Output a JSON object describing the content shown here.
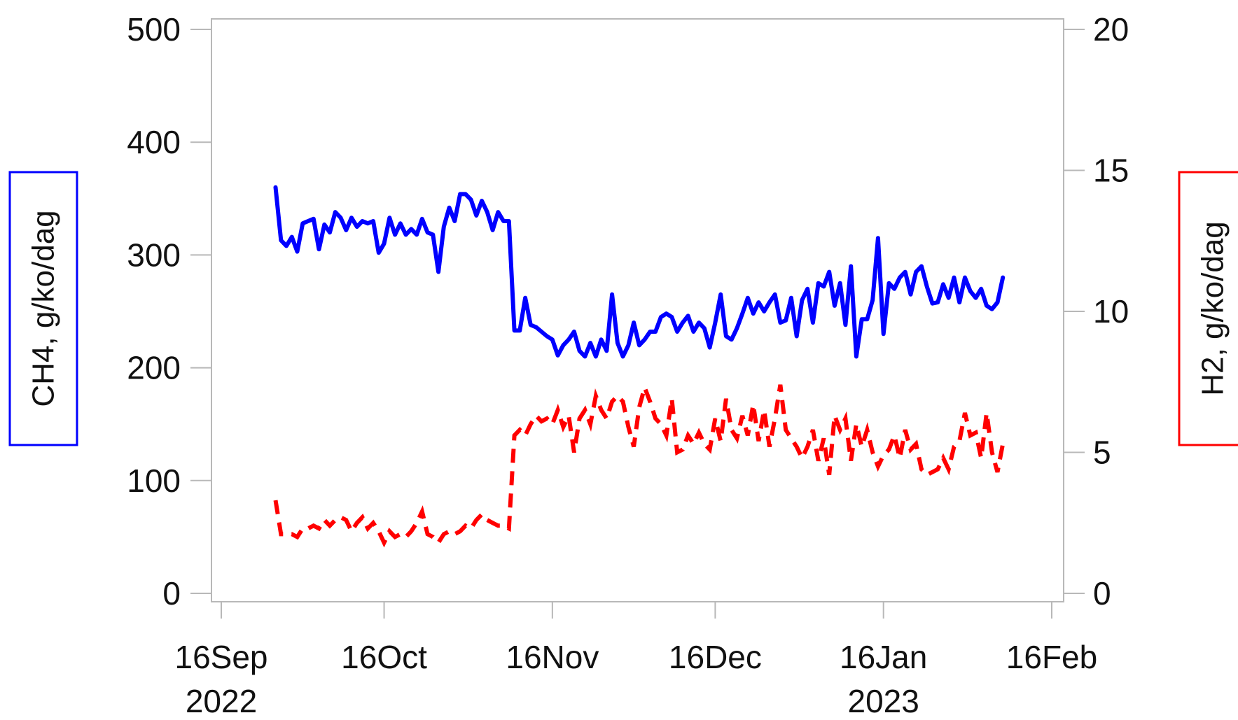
{
  "chart_data": {
    "type": "line",
    "title": "",
    "x_axis": {
      "type": "date",
      "ticks": [
        {
          "date": "2022-09-16",
          "line1": "16Sep",
          "line2": "2022"
        },
        {
          "date": "2022-10-16",
          "line1": "16Oct",
          "line2": ""
        },
        {
          "date": "2022-11-16",
          "line1": "16Nov",
          "line2": ""
        },
        {
          "date": "2022-12-16",
          "line1": "16Dec",
          "line2": ""
        },
        {
          "date": "2023-01-16",
          "line1": "16Jan",
          "line2": "2023"
        },
        {
          "date": "2023-02-16",
          "line1": "16Feb",
          "line2": ""
        }
      ]
    },
    "y_left": {
      "label": "CH4, g/ko/dag",
      "range": [
        0,
        500
      ],
      "ticks": [
        "0",
        "100",
        "200",
        "300",
        "400",
        "500"
      ],
      "color": "#0000ff"
    },
    "y_right": {
      "label": "H2, g/ko/dag",
      "range": [
        0,
        20
      ],
      "ticks": [
        "0",
        "5",
        "10",
        "15",
        "20"
      ],
      "color": "#ff0000"
    },
    "grid": false,
    "series": [
      {
        "axis": "left",
        "color": "#0000ff",
        "style": "solid",
        "points": [
          [
            "2022-09-26",
            360
          ],
          [
            "2022-09-27",
            313
          ],
          [
            "2022-09-28",
            308
          ],
          [
            "2022-09-29",
            316
          ],
          [
            "2022-09-30",
            303
          ],
          [
            "2022-10-01",
            328
          ],
          [
            "2022-10-02",
            330
          ],
          [
            "2022-10-03",
            332
          ],
          [
            "2022-10-04",
            305
          ],
          [
            "2022-10-05",
            327
          ],
          [
            "2022-10-06",
            320
          ],
          [
            "2022-10-07",
            338
          ],
          [
            "2022-10-08",
            333
          ],
          [
            "2022-10-09",
            322
          ],
          [
            "2022-10-10",
            333
          ],
          [
            "2022-10-11",
            325
          ],
          [
            "2022-10-12",
            330
          ],
          [
            "2022-10-13",
            328
          ],
          [
            "2022-10-14",
            330
          ],
          [
            "2022-10-15",
            302
          ],
          [
            "2022-10-16",
            310
          ],
          [
            "2022-10-17",
            333
          ],
          [
            "2022-10-18",
            318
          ],
          [
            "2022-10-19",
            328
          ],
          [
            "2022-10-20",
            318
          ],
          [
            "2022-10-21",
            323
          ],
          [
            "2022-10-22",
            318
          ],
          [
            "2022-10-23",
            332
          ],
          [
            "2022-10-24",
            320
          ],
          [
            "2022-10-25",
            318
          ],
          [
            "2022-10-26",
            285
          ],
          [
            "2022-10-27",
            325
          ],
          [
            "2022-10-28",
            342
          ],
          [
            "2022-10-29",
            330
          ],
          [
            "2022-10-30",
            354
          ],
          [
            "2022-10-31",
            354
          ],
          [
            "2022-11-01",
            349
          ],
          [
            "2022-11-02",
            335
          ],
          [
            "2022-11-03",
            348
          ],
          [
            "2022-11-04",
            338
          ],
          [
            "2022-11-05",
            322
          ],
          [
            "2022-11-06",
            338
          ],
          [
            "2022-11-07",
            330
          ],
          [
            "2022-11-08",
            330
          ],
          [
            "2022-11-09",
            233
          ],
          [
            "2022-11-10",
            233
          ],
          [
            "2022-11-11",
            262
          ],
          [
            "2022-11-12",
            238
          ],
          [
            "2022-11-13",
            236
          ],
          [
            "2022-11-14",
            232
          ],
          [
            "2022-11-15",
            228
          ],
          [
            "2022-11-16",
            225
          ],
          [
            "2022-11-17",
            211
          ],
          [
            "2022-11-18",
            220
          ],
          [
            "2022-11-19",
            225
          ],
          [
            "2022-11-20",
            232
          ],
          [
            "2022-11-21",
            215
          ],
          [
            "2022-11-22",
            210
          ],
          [
            "2022-11-23",
            222
          ],
          [
            "2022-11-24",
            210
          ],
          [
            "2022-11-25",
            225
          ],
          [
            "2022-11-26",
            215
          ],
          [
            "2022-11-27",
            265
          ],
          [
            "2022-11-28",
            222
          ],
          [
            "2022-11-29",
            210
          ],
          [
            "2022-11-30",
            220
          ],
          [
            "2022-12-01",
            240
          ],
          [
            "2022-12-02",
            220
          ],
          [
            "2022-12-03",
            225
          ],
          [
            "2022-12-04",
            232
          ],
          [
            "2022-12-05",
            232
          ],
          [
            "2022-12-06",
            245
          ],
          [
            "2022-12-07",
            248
          ],
          [
            "2022-12-08",
            245
          ],
          [
            "2022-12-09",
            232
          ],
          [
            "2022-12-10",
            240
          ],
          [
            "2022-12-11",
            246
          ],
          [
            "2022-12-12",
            232
          ],
          [
            "2022-12-13",
            240
          ],
          [
            "2022-12-14",
            235
          ],
          [
            "2022-12-15",
            218
          ],
          [
            "2022-12-16",
            240
          ],
          [
            "2022-12-17",
            265
          ],
          [
            "2022-12-18",
            228
          ],
          [
            "2022-12-19",
            225
          ],
          [
            "2022-12-20",
            235
          ],
          [
            "2022-12-21",
            248
          ],
          [
            "2022-12-22",
            262
          ],
          [
            "2022-12-23",
            248
          ],
          [
            "2022-12-24",
            258
          ],
          [
            "2022-12-25",
            250
          ],
          [
            "2022-12-26",
            258
          ],
          [
            "2022-12-27",
            265
          ],
          [
            "2022-12-28",
            240
          ],
          [
            "2022-12-29",
            242
          ],
          [
            "2022-12-30",
            262
          ],
          [
            "2022-12-31",
            228
          ],
          [
            "2023-01-01",
            260
          ],
          [
            "2023-01-02",
            270
          ],
          [
            "2023-01-03",
            240
          ],
          [
            "2023-01-04",
            275
          ],
          [
            "2023-01-05",
            272
          ],
          [
            "2023-01-06",
            285
          ],
          [
            "2023-01-07",
            255
          ],
          [
            "2023-01-08",
            275
          ],
          [
            "2023-01-09",
            238
          ],
          [
            "2023-01-10",
            290
          ],
          [
            "2023-01-11",
            210
          ],
          [
            "2023-01-12",
            243
          ],
          [
            "2023-01-13",
            243
          ],
          [
            "2023-01-14",
            260
          ],
          [
            "2023-01-15",
            315
          ],
          [
            "2023-01-16",
            230
          ],
          [
            "2023-01-17",
            275
          ],
          [
            "2023-01-18",
            270
          ],
          [
            "2023-01-19",
            280
          ],
          [
            "2023-01-20",
            285
          ],
          [
            "2023-01-21",
            265
          ],
          [
            "2023-01-22",
            285
          ],
          [
            "2023-01-23",
            290
          ],
          [
            "2023-01-24",
            272
          ],
          [
            "2023-01-25",
            257
          ],
          [
            "2023-01-26",
            258
          ],
          [
            "2023-01-27",
            274
          ],
          [
            "2023-01-28",
            262
          ],
          [
            "2023-01-29",
            280
          ],
          [
            "2023-01-30",
            258
          ],
          [
            "2023-01-31",
            280
          ],
          [
            "2023-02-01",
            268
          ],
          [
            "2023-02-02",
            262
          ],
          [
            "2023-02-03",
            270
          ],
          [
            "2023-02-04",
            255
          ],
          [
            "2023-02-05",
            252
          ],
          [
            "2023-02-06",
            258
          ],
          [
            "2023-02-07",
            280
          ]
        ]
      },
      {
        "axis": "right",
        "color": "#ff0000",
        "style": "dashed",
        "points": [
          [
            "2022-09-26",
            3.3
          ],
          [
            "2022-09-27",
            2.1
          ],
          [
            "2022-09-28",
            2.1
          ],
          [
            "2022-09-29",
            2.1
          ],
          [
            "2022-09-30",
            2.0
          ],
          [
            "2022-10-01",
            2.3
          ],
          [
            "2022-10-02",
            2.3
          ],
          [
            "2022-10-03",
            2.4
          ],
          [
            "2022-10-04",
            2.3
          ],
          [
            "2022-10-05",
            2.6
          ],
          [
            "2022-10-06",
            2.4
          ],
          [
            "2022-10-07",
            2.6
          ],
          [
            "2022-10-08",
            2.7
          ],
          [
            "2022-10-09",
            2.6
          ],
          [
            "2022-10-10",
            2.2
          ],
          [
            "2022-10-11",
            2.5
          ],
          [
            "2022-10-12",
            2.7
          ],
          [
            "2022-10-13",
            2.3
          ],
          [
            "2022-10-14",
            2.5
          ],
          [
            "2022-10-15",
            2.2
          ],
          [
            "2022-10-16",
            1.8
          ],
          [
            "2022-10-17",
            2.2
          ],
          [
            "2022-10-18",
            2.0
          ],
          [
            "2022-10-19",
            2.1
          ],
          [
            "2022-10-20",
            2.0
          ],
          [
            "2022-10-21",
            2.2
          ],
          [
            "2022-10-22",
            2.5
          ],
          [
            "2022-10-23",
            2.9
          ],
          [
            "2022-10-24",
            2.1
          ],
          [
            "2022-10-25",
            2.0
          ],
          [
            "2022-10-26",
            1.8
          ],
          [
            "2022-10-27",
            2.1
          ],
          [
            "2022-10-28",
            2.2
          ],
          [
            "2022-10-29",
            2.1
          ],
          [
            "2022-10-30",
            2.2
          ],
          [
            "2022-10-31",
            2.4
          ],
          [
            "2022-11-01",
            2.3
          ],
          [
            "2022-11-02",
            2.6
          ],
          [
            "2022-11-03",
            2.8
          ],
          [
            "2022-11-04",
            2.6
          ],
          [
            "2022-11-05",
            2.5
          ],
          [
            "2022-11-06",
            2.4
          ],
          [
            "2022-11-07",
            2.4
          ],
          [
            "2022-11-08",
            2.3
          ],
          [
            "2022-11-09",
            5.6
          ],
          [
            "2022-11-10",
            5.8
          ],
          [
            "2022-11-11",
            5.6
          ],
          [
            "2022-11-12",
            6.0
          ],
          [
            "2022-11-13",
            6.3
          ],
          [
            "2022-11-14",
            6.1
          ],
          [
            "2022-11-15",
            6.2
          ],
          [
            "2022-11-16",
            6.0
          ],
          [
            "2022-11-17",
            6.5
          ],
          [
            "2022-11-18",
            5.9
          ],
          [
            "2022-11-19",
            6.3
          ],
          [
            "2022-11-20",
            5.0
          ],
          [
            "2022-11-21",
            6.2
          ],
          [
            "2022-11-22",
            6.5
          ],
          [
            "2022-11-23",
            6.0
          ],
          [
            "2022-11-24",
            7.0
          ],
          [
            "2022-11-25",
            6.5
          ],
          [
            "2022-11-26",
            6.2
          ],
          [
            "2022-11-27",
            6.8
          ],
          [
            "2022-11-28",
            7.0
          ],
          [
            "2022-11-29",
            6.8
          ],
          [
            "2022-11-30",
            5.9
          ],
          [
            "2022-12-01",
            5.2
          ],
          [
            "2022-12-02",
            6.6
          ],
          [
            "2022-12-03",
            7.3
          ],
          [
            "2022-12-04",
            6.8
          ],
          [
            "2022-12-05",
            6.2
          ],
          [
            "2022-12-06",
            6.0
          ],
          [
            "2022-12-07",
            5.6
          ],
          [
            "2022-12-08",
            6.9
          ],
          [
            "2022-12-09",
            5.0
          ],
          [
            "2022-12-10",
            5.1
          ],
          [
            "2022-12-11",
            5.6
          ],
          [
            "2022-12-12",
            5.3
          ],
          [
            "2022-12-13",
            5.7
          ],
          [
            "2022-12-14",
            5.3
          ],
          [
            "2022-12-15",
            5.1
          ],
          [
            "2022-12-16",
            6.2
          ],
          [
            "2022-12-17",
            5.4
          ],
          [
            "2022-12-18",
            6.9
          ],
          [
            "2022-12-19",
            5.8
          ],
          [
            "2022-12-20",
            5.5
          ],
          [
            "2022-12-21",
            6.3
          ],
          [
            "2022-12-22",
            5.6
          ],
          [
            "2022-12-23",
            6.7
          ],
          [
            "2022-12-24",
            5.4
          ],
          [
            "2022-12-25",
            6.5
          ],
          [
            "2022-12-26",
            5.2
          ],
          [
            "2022-12-27",
            6.2
          ],
          [
            "2022-12-28",
            7.4
          ],
          [
            "2022-12-29",
            5.8
          ],
          [
            "2022-12-30",
            5.5
          ],
          [
            "2022-12-31",
            5.2
          ],
          [
            "2023-01-01",
            4.8
          ],
          [
            "2023-01-02",
            5.2
          ],
          [
            "2023-01-03",
            5.8
          ],
          [
            "2023-01-04",
            4.7
          ],
          [
            "2023-01-05",
            5.5
          ],
          [
            "2023-01-06",
            4.2
          ],
          [
            "2023-01-07",
            6.3
          ],
          [
            "2023-01-08",
            5.8
          ],
          [
            "2023-01-09",
            6.2
          ],
          [
            "2023-01-10",
            4.7
          ],
          [
            "2023-01-11",
            6.0
          ],
          [
            "2023-01-12",
            5.2
          ],
          [
            "2023-01-13",
            5.8
          ],
          [
            "2023-01-14",
            5.0
          ],
          [
            "2023-01-15",
            4.5
          ],
          [
            "2023-01-16",
            4.9
          ],
          [
            "2023-01-17",
            5.1
          ],
          [
            "2023-01-18",
            5.6
          ],
          [
            "2023-01-19",
            4.8
          ],
          [
            "2023-01-20",
            5.8
          ],
          [
            "2023-01-21",
            5.1
          ],
          [
            "2023-01-22",
            5.3
          ],
          [
            "2023-01-23",
            4.4
          ],
          [
            "2023-01-24",
            4.2
          ],
          [
            "2023-01-25",
            4.3
          ],
          [
            "2023-01-26",
            4.4
          ],
          [
            "2023-01-27",
            4.8
          ],
          [
            "2023-01-28",
            4.4
          ],
          [
            "2023-01-29",
            5.2
          ],
          [
            "2023-01-30",
            5.4
          ],
          [
            "2023-01-31",
            6.4
          ],
          [
            "2023-02-01",
            5.6
          ],
          [
            "2023-02-02",
            5.7
          ],
          [
            "2023-02-03",
            4.8
          ],
          [
            "2023-02-04",
            6.4
          ],
          [
            "2023-02-05",
            5.0
          ],
          [
            "2023-02-06",
            4.3
          ],
          [
            "2023-02-07",
            5.3
          ]
        ]
      }
    ]
  }
}
